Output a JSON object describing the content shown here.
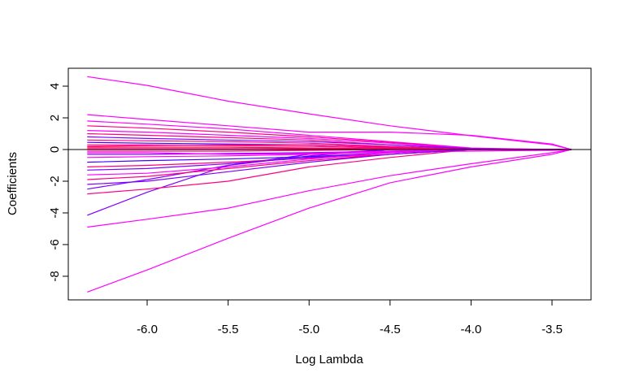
{
  "chart_data": {
    "type": "line",
    "title": "",
    "xlabel": "Log Lambda",
    "ylabel": "Coefficients",
    "xlim": [
      -6.487,
      -3.259
    ],
    "ylim": [
      -9.49,
      5.13
    ],
    "grid": false,
    "legend": "none",
    "zero_line": 0,
    "xticks": [
      -6.0,
      -5.5,
      -5.0,
      -4.5,
      -4.0,
      -3.5
    ],
    "xtick_labels": [
      "-6.0",
      "-5.5",
      "-5.0",
      "-4.5",
      "-4.0",
      "-3.5"
    ],
    "yticks": [
      4,
      2,
      0,
      -2,
      -4,
      -6,
      -8
    ],
    "ytick_labels": [
      "4",
      "2",
      "0",
      "-2",
      "-4",
      "-6",
      "-8"
    ],
    "x": [
      -6.37,
      -6.0,
      -5.5,
      -5.0,
      -4.5,
      -4.0,
      -3.5,
      -3.38
    ],
    "series": [
      {
        "color": "#ff00ff",
        "values": [
          4.6,
          4.05,
          3.05,
          2.25,
          1.5,
          0.87,
          0.3,
          0
        ]
      },
      {
        "color": "#ff00ff",
        "values": [
          2.2,
          1.9,
          1.5,
          1.1,
          1.1,
          0.9,
          0.35,
          0
        ]
      },
      {
        "color": "#ff00ff",
        "values": [
          -9.0,
          -7.6,
          -5.6,
          -3.7,
          -2.1,
          -1.1,
          -0.3,
          0
        ]
      },
      {
        "color": "#ff00ff",
        "values": [
          -4.9,
          -4.4,
          -3.7,
          -2.6,
          -1.65,
          -0.9,
          -0.2,
          0
        ]
      },
      {
        "color": "#8000ff",
        "values": [
          -4.15,
          -2.7,
          -1.0,
          -0.3,
          0,
          0,
          0,
          0
        ]
      },
      {
        "color": "#ff0080",
        "values": [
          -2.8,
          -2.5,
          -2.0,
          -1.1,
          -0.5,
          0,
          0,
          0
        ]
      },
      {
        "color": "#8000ff",
        "values": [
          -2.5,
          -1.9,
          -1.0,
          -0.4,
          0,
          0,
          0,
          0
        ]
      },
      {
        "color": "#ff00ff",
        "values": [
          1.8,
          1.6,
          1.3,
          0.9,
          0.5,
          0.1,
          0,
          0
        ]
      },
      {
        "color": "#ff0080",
        "values": [
          1.5,
          1.35,
          1.1,
          0.8,
          0.45,
          0.05,
          0,
          0
        ]
      },
      {
        "color": "#ff00ff",
        "values": [
          1.2,
          1.1,
          0.9,
          0.7,
          0.4,
          0.05,
          0,
          0
        ]
      },
      {
        "color": "#ff0080",
        "values": [
          1.0,
          0.9,
          0.75,
          0.6,
          0.3,
          0,
          0,
          0
        ]
      },
      {
        "color": "#8000ff",
        "values": [
          0.8,
          0.7,
          0.6,
          0.5,
          0.3,
          0.05,
          0,
          0
        ]
      },
      {
        "color": "#ff0080",
        "values": [
          0.6,
          0.55,
          0.5,
          0.4,
          0.2,
          0,
          0,
          0
        ]
      },
      {
        "color": "#4000ff",
        "values": [
          0.45,
          0.4,
          0.35,
          0.3,
          0.15,
          0,
          0,
          0
        ]
      },
      {
        "color": "#ff0080",
        "values": [
          0.3,
          0.3,
          0.25,
          0.2,
          0.1,
          0,
          0,
          0
        ]
      },
      {
        "color": "#ff0040",
        "values": [
          0.15,
          0.15,
          0.15,
          0.1,
          0.05,
          0,
          0,
          0
        ]
      },
      {
        "color": "#ff0080",
        "values": [
          0.05,
          0.05,
          0.05,
          0.05,
          0.02,
          0,
          0,
          0
        ]
      },
      {
        "color": "#ff0080",
        "values": [
          -0.1,
          -0.1,
          -0.1,
          -0.05,
          0,
          0,
          0,
          0
        ]
      },
      {
        "color": "#8000ff",
        "values": [
          -0.3,
          -0.3,
          -0.25,
          -0.2,
          -0.1,
          0,
          0,
          0
        ]
      },
      {
        "color": "#ff00ff",
        "values": [
          -0.5,
          -0.45,
          -0.4,
          -0.3,
          -0.15,
          -0.1,
          -0.05,
          0
        ]
      },
      {
        "color": "#4000ff",
        "values": [
          -0.8,
          -0.7,
          -0.6,
          -0.45,
          -0.2,
          0,
          0,
          0
        ]
      },
      {
        "color": "#ff0080",
        "values": [
          -1.1,
          -1.0,
          -0.8,
          -0.55,
          -0.3,
          0,
          0,
          0
        ]
      },
      {
        "color": "#8000ff",
        "values": [
          -1.3,
          -1.2,
          -0.9,
          -0.5,
          -0.2,
          0,
          0,
          0
        ]
      },
      {
        "color": "#ff00ff",
        "values": [
          -1.6,
          -1.5,
          -1.1,
          -0.6,
          -0.2,
          0,
          0,
          0
        ]
      },
      {
        "color": "#ff0080",
        "values": [
          -1.9,
          -1.7,
          -1.2,
          -0.7,
          -0.3,
          0,
          0,
          0
        ]
      },
      {
        "color": "#8000ff",
        "values": [
          -2.2,
          -2.0,
          -1.4,
          -0.8,
          -0.3,
          0,
          0,
          0
        ]
      },
      {
        "color": "#ff0080",
        "values": [
          0.2,
          0.25,
          0.3,
          0.3,
          0.15,
          0,
          0,
          0
        ]
      },
      {
        "color": "#ff00ff",
        "values": [
          -0.2,
          -0.2,
          -0.3,
          -0.25,
          -0.1,
          0,
          0,
          0
        ]
      }
    ]
  }
}
